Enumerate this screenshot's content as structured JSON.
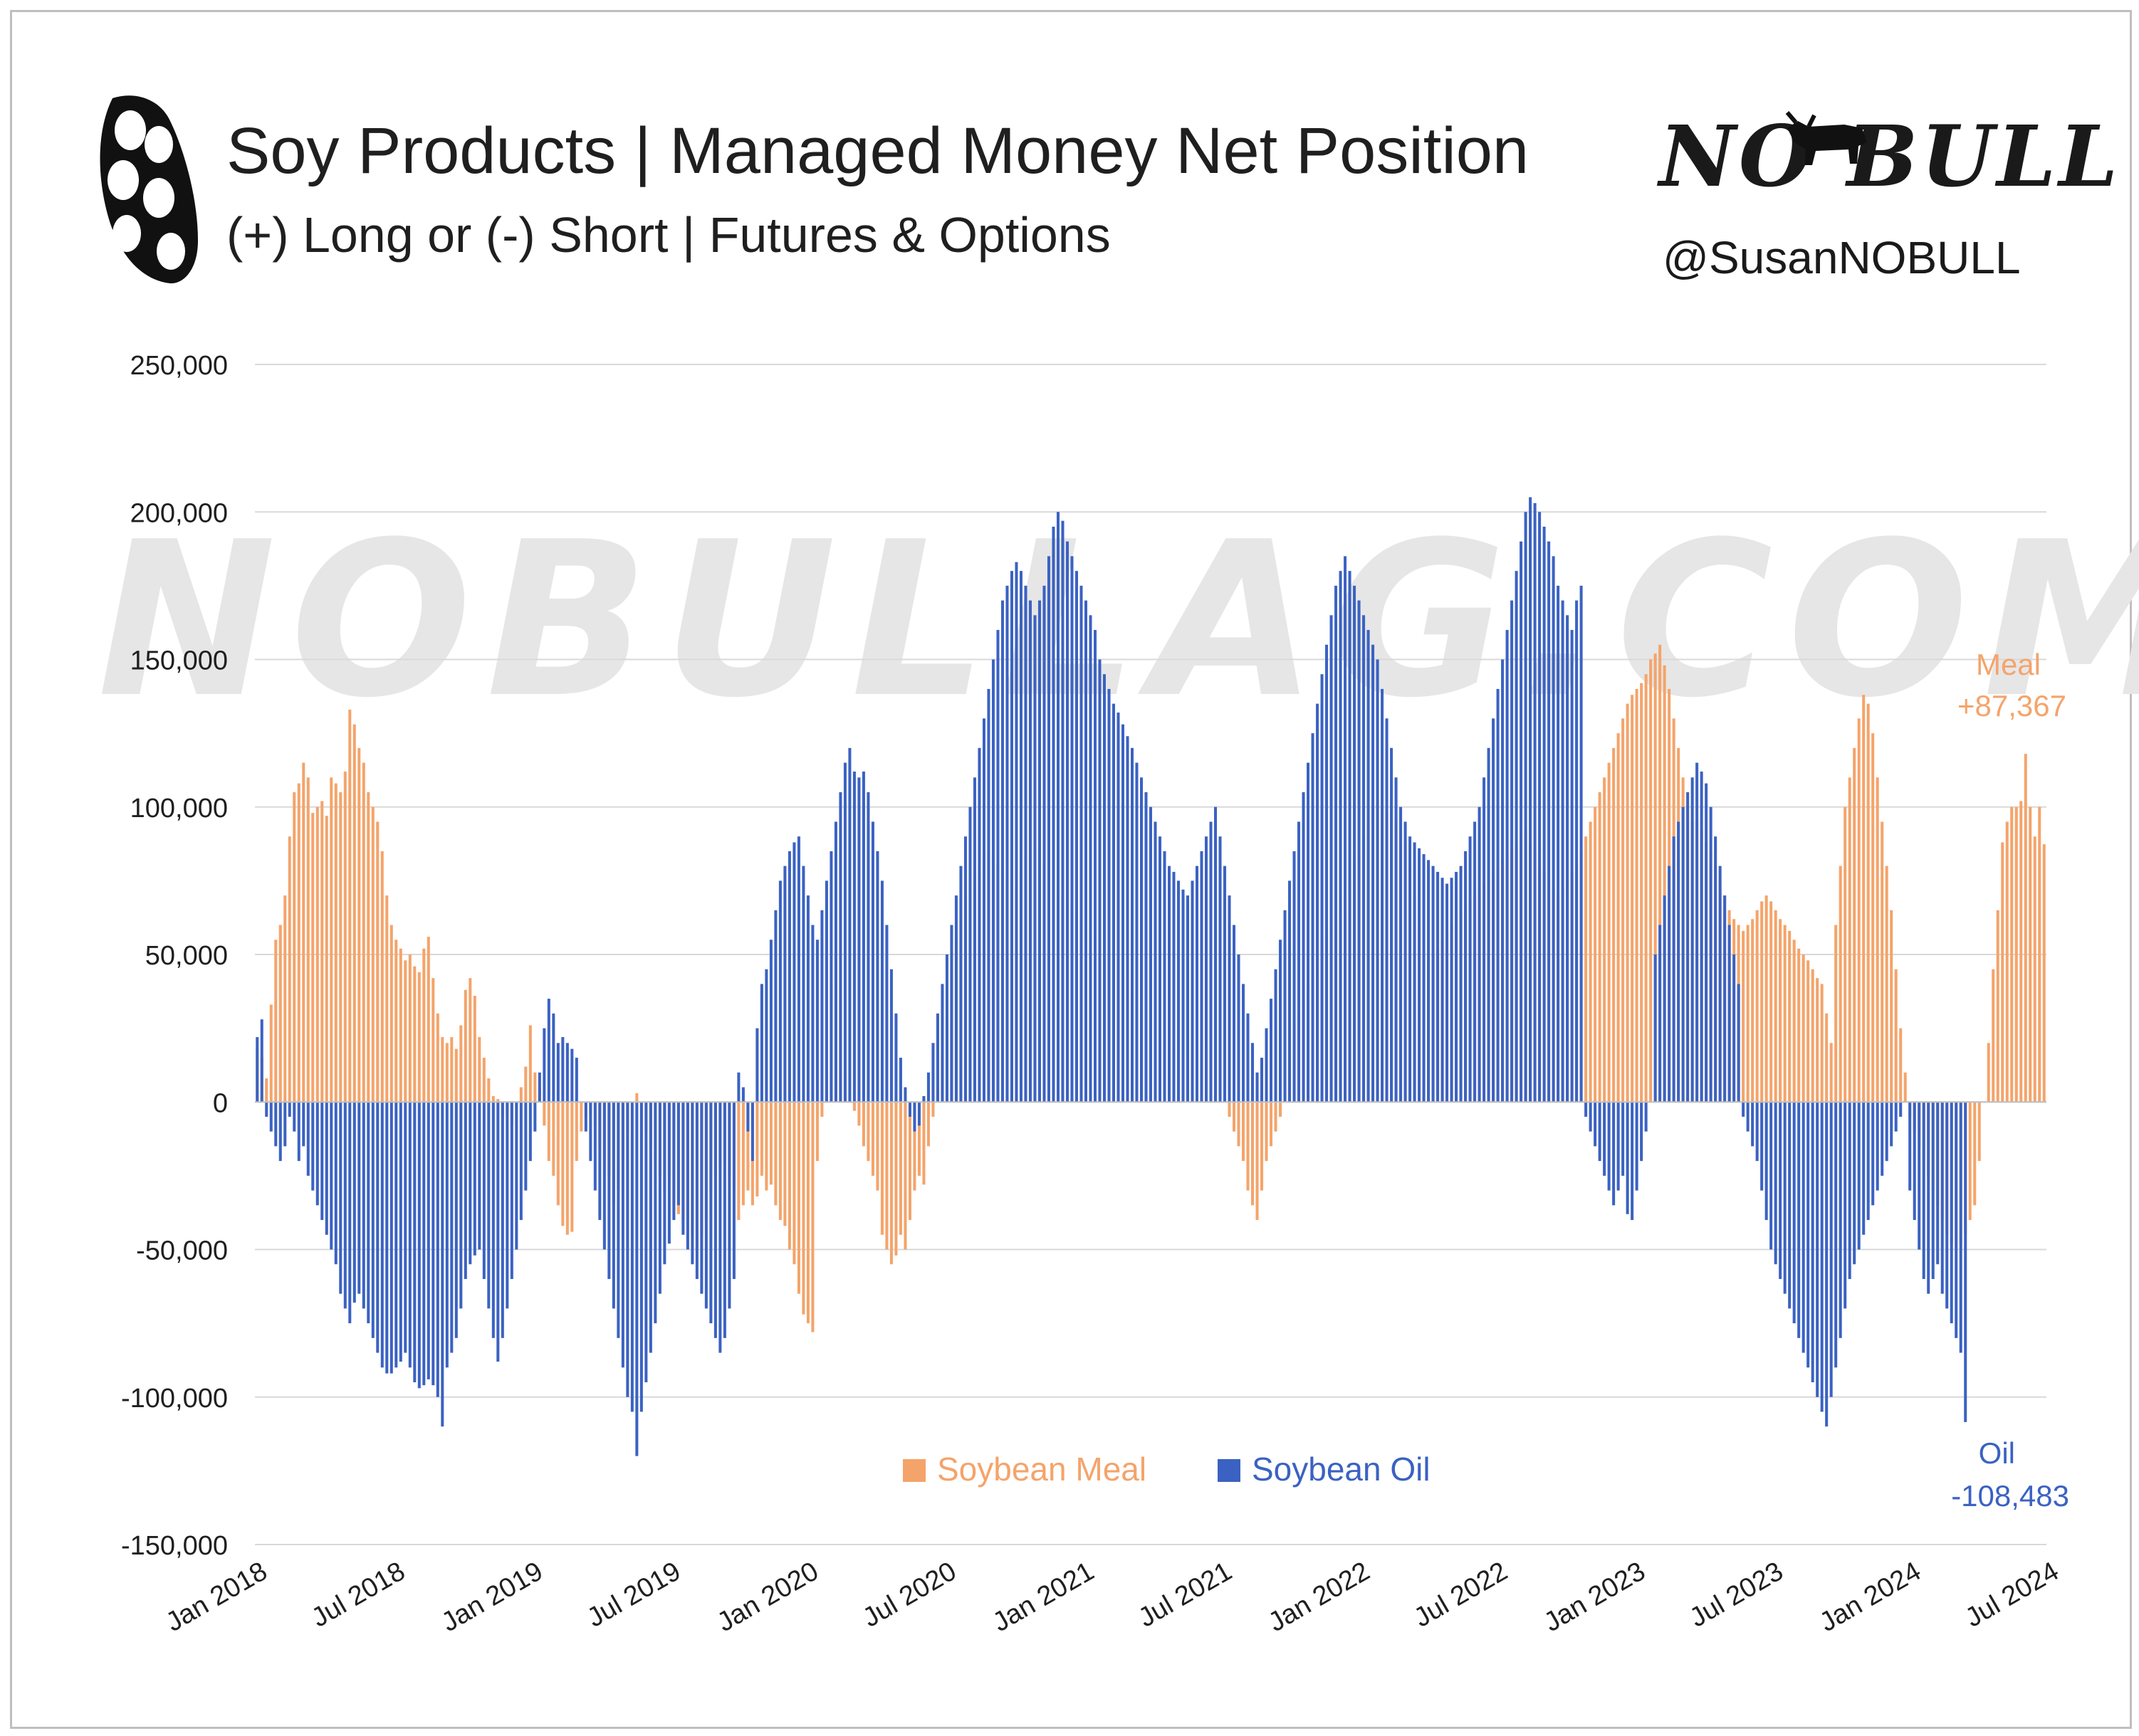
{
  "header": {
    "title": "Soy Products | Managed Money Net Position",
    "subtitle": "(+) Long or (-) Short | Futures & Options",
    "brand": "NO BULL",
    "handle": "@SusanNOBULL",
    "icon": "soybean-pod-icon",
    "brand_icon": "bull-icon"
  },
  "watermark": "NOBULLAG.COM",
  "colors": {
    "meal": "#f4a46b",
    "oil": "#3b62c2",
    "grid": "#d9d9d9",
    "text": "#1f1f1f"
  },
  "annotations": {
    "meal_name": "Meal",
    "meal_value": "+87,367",
    "oil_name": "Oil",
    "oil_value": "-108,483"
  },
  "chart_data": {
    "type": "bar",
    "x_start": "2018-01",
    "x_end": "2024-07",
    "frequency": "weekly",
    "xticks": [
      "Jan 2018",
      "Jul 2018",
      "Jan 2019",
      "Jul 2019",
      "Jan 2020",
      "Jul 2020",
      "Jan 2021",
      "Jul 2021",
      "Jan 2022",
      "Jul 2022",
      "Jan 2023",
      "Jul 2023",
      "Jan 2024",
      "Jul 2024"
    ],
    "yticks": [
      "250,000",
      "200,000",
      "150,000",
      "100,000",
      "50,000",
      "0",
      "-50,000",
      "-100,000",
      "-150,000"
    ],
    "ylim": [
      -150000,
      250000
    ],
    "grid": true,
    "legend_position": "bottom-center",
    "series": [
      {
        "name": "Soybean Meal",
        "color": "#f4a46b",
        "values": [
          18000,
          15000,
          8000,
          33000,
          55000,
          60000,
          70000,
          90000,
          105000,
          108000,
          115000,
          110000,
          98000,
          100000,
          102000,
          97000,
          110000,
          108000,
          105000,
          112000,
          133000,
          128000,
          120000,
          115000,
          105000,
          100000,
          95000,
          85000,
          70000,
          60000,
          55000,
          52000,
          48000,
          50000,
          46000,
          44000,
          52000,
          56000,
          42000,
          30000,
          22000,
          20000,
          22000,
          18000,
          26000,
          38000,
          42000,
          36000,
          22000,
          15000,
          8000,
          2000,
          1000,
          -5000,
          -4000,
          -8000,
          -2000,
          5000,
          12000,
          26000,
          10000,
          5000,
          -8000,
          -20000,
          -25000,
          -35000,
          -42000,
          -45000,
          -44000,
          -20000,
          -10000,
          -5000,
          -4000,
          -8000,
          -15000,
          -20000,
          -25000,
          -35000,
          -30000,
          -20000,
          -10000,
          0,
          3000,
          0,
          -10000,
          -15000,
          -20000,
          -25000,
          -30000,
          -25000,
          -35000,
          -38000,
          -40000,
          -40000,
          -45000,
          -50000,
          -45000,
          -40000,
          -30000,
          -25000,
          -22000,
          -20000,
          -25000,
          -30000,
          -40000,
          -35000,
          -30000,
          -35000,
          -32000,
          -25000,
          -30000,
          -28000,
          -35000,
          -40000,
          -42000,
          -50000,
          -55000,
          -65000,
          -72000,
          -75000,
          -78000,
          -20000,
          -5000,
          10000,
          40000,
          50000,
          35000,
          10000,
          0,
          -3000,
          -8000,
          -15000,
          -20000,
          -25000,
          -30000,
          -45000,
          -50000,
          -55000,
          -52000,
          -45000,
          -50000,
          -40000,
          -30000,
          -25000,
          -28000,
          -15000,
          -5000,
          5000,
          15000,
          28000,
          45000,
          55000,
          62000,
          70000,
          75000,
          78000,
          80000,
          82000,
          85000,
          83000,
          80000,
          78000,
          76000,
          74000,
          72000,
          78000,
          84000,
          87000,
          86000,
          84000,
          82000,
          78000,
          75000,
          72000,
          70000,
          68000,
          66000,
          64000,
          62000,
          60000,
          58000,
          55000,
          50000,
          45000,
          48000,
          50000,
          45000,
          42000,
          40000,
          38000,
          35000,
          32000,
          30000,
          28000,
          25000,
          22000,
          20000,
          18000,
          17000,
          16000,
          16000,
          17000,
          18000,
          19000,
          20000,
          18000,
          16000,
          15000,
          10000,
          0,
          -5000,
          -10000,
          -15000,
          -20000,
          -30000,
          -35000,
          -40000,
          -30000,
          -20000,
          -15000,
          -10000,
          -5000,
          5000,
          15000,
          25000,
          30000,
          35000,
          40000,
          45000,
          50000,
          55000,
          58000,
          60000,
          62000,
          65000,
          70000,
          75000,
          80000,
          85000,
          90000,
          95000,
          100000,
          102000,
          100000,
          98000,
          96000,
          95000,
          92000,
          88000,
          80000,
          70000,
          60000,
          50000,
          48000,
          50000,
          52000,
          55000,
          58000,
          60000,
          62000,
          64000,
          66000,
          68000,
          70000,
          72000,
          74000,
          76000,
          78000,
          80000,
          82000,
          84000,
          86000,
          88000,
          90000,
          92000,
          88000,
          85000,
          80000,
          78000,
          75000,
          72000,
          70000,
          72000,
          75000,
          78000,
          80000,
          85000,
          90000,
          95000,
          100000,
          105000,
          110000,
          115000,
          120000,
          125000,
          130000,
          135000,
          138000,
          140000,
          142000,
          145000,
          150000,
          152000,
          155000,
          148000,
          140000,
          130000,
          120000,
          110000,
          100000,
          95000,
          95000,
          92000,
          88000,
          85000,
          80000,
          75000,
          70000,
          65000,
          62000,
          60000,
          58000,
          60000,
          62000,
          65000,
          68000,
          70000,
          68000,
          65000,
          62000,
          60000,
          58000,
          55000,
          52000,
          50000,
          48000,
          45000,
          42000,
          40000,
          30000,
          20000,
          60000,
          80000,
          100000,
          110000,
          120000,
          130000,
          138000,
          135000,
          125000,
          110000,
          95000,
          80000,
          65000,
          45000,
          25000,
          10000,
          -5000,
          -10000,
          -15000,
          -20000,
          -25000,
          -30000,
          -35000,
          -40000,
          -45000,
          -48000,
          -50000,
          -48000,
          -45000,
          -40000,
          -35000,
          -20000,
          0,
          20000,
          45000,
          65000,
          88000,
          95000,
          100000,
          100000,
          102000,
          118000,
          100000,
          90000,
          100000,
          87367
        ]
      },
      {
        "name": "Soybean Oil",
        "color": "#3b62c2",
        "values": [
          22000,
          28000,
          -5000,
          -10000,
          -15000,
          -20000,
          -15000,
          -5000,
          -10000,
          -20000,
          -15000,
          -25000,
          -30000,
          -35000,
          -40000,
          -45000,
          -50000,
          -55000,
          -65000,
          -70000,
          -75000,
          -68000,
          -65000,
          -70000,
          -75000,
          -80000,
          -85000,
          -90000,
          -92000,
          -92000,
          -90000,
          -88000,
          -85000,
          -90000,
          -95000,
          -97000,
          -96000,
          -94000,
          -96000,
          -100000,
          -110000,
          -90000,
          -85000,
          -80000,
          -70000,
          -60000,
          -55000,
          -52000,
          -50000,
          -60000,
          -70000,
          -80000,
          -88000,
          -80000,
          -70000,
          -60000,
          -50000,
          -40000,
          -30000,
          -20000,
          -10000,
          10000,
          25000,
          35000,
          30000,
          20000,
          22000,
          20000,
          18000,
          15000,
          0,
          -10000,
          -20000,
          -30000,
          -40000,
          -50000,
          -60000,
          -70000,
          -80000,
          -90000,
          -100000,
          -105000,
          -120000,
          -105000,
          -95000,
          -85000,
          -75000,
          -65000,
          -55000,
          -48000,
          -40000,
          -35000,
          -45000,
          -50000,
          -55000,
          -60000,
          -65000,
          -70000,
          -75000,
          -80000,
          -85000,
          -80000,
          -70000,
          -60000,
          10000,
          5000,
          -10000,
          -20000,
          25000,
          40000,
          45000,
          55000,
          65000,
          75000,
          80000,
          85000,
          88000,
          90000,
          80000,
          70000,
          60000,
          55000,
          65000,
          75000,
          85000,
          95000,
          105000,
          115000,
          120000,
          112000,
          110000,
          112000,
          105000,
          95000,
          85000,
          75000,
          60000,
          45000,
          30000,
          15000,
          5000,
          -5000,
          -10000,
          -8000,
          2000,
          10000,
          20000,
          30000,
          40000,
          50000,
          60000,
          70000,
          80000,
          90000,
          100000,
          110000,
          120000,
          130000,
          140000,
          150000,
          160000,
          170000,
          175000,
          180000,
          183000,
          180000,
          175000,
          170000,
          165000,
          170000,
          175000,
          185000,
          195000,
          200000,
          197000,
          190000,
          185000,
          180000,
          175000,
          170000,
          165000,
          160000,
          150000,
          145000,
          140000,
          135000,
          132000,
          128000,
          124000,
          120000,
          115000,
          110000,
          105000,
          100000,
          95000,
          90000,
          85000,
          80000,
          78000,
          75000,
          72000,
          70000,
          75000,
          80000,
          85000,
          90000,
          95000,
          100000,
          90000,
          80000,
          70000,
          60000,
          50000,
          40000,
          30000,
          20000,
          10000,
          15000,
          25000,
          35000,
          45000,
          55000,
          65000,
          75000,
          85000,
          95000,
          105000,
          115000,
          125000,
          135000,
          145000,
          155000,
          165000,
          175000,
          180000,
          185000,
          180000,
          175000,
          170000,
          165000,
          160000,
          155000,
          150000,
          140000,
          130000,
          120000,
          110000,
          100000,
          95000,
          90000,
          88000,
          86000,
          84000,
          82000,
          80000,
          78000,
          76000,
          74000,
          76000,
          78000,
          80000,
          85000,
          90000,
          95000,
          100000,
          110000,
          120000,
          130000,
          140000,
          150000,
          160000,
          170000,
          180000,
          190000,
          200000,
          205000,
          203000,
          200000,
          195000,
          190000,
          185000,
          175000,
          170000,
          165000,
          160000,
          170000,
          175000,
          -5000,
          -10000,
          -15000,
          -20000,
          -25000,
          -30000,
          -35000,
          -30000,
          -25000,
          -38000,
          -40000,
          -30000,
          -20000,
          -10000,
          0,
          50000,
          60000,
          70000,
          80000,
          90000,
          95000,
          100000,
          105000,
          110000,
          115000,
          112000,
          108000,
          100000,
          90000,
          80000,
          70000,
          60000,
          50000,
          40000,
          -5000,
          -10000,
          -15000,
          -20000,
          -30000,
          -40000,
          -50000,
          -55000,
          -60000,
          -65000,
          -70000,
          -75000,
          -80000,
          -85000,
          -90000,
          -95000,
          -100000,
          -105000,
          -110000,
          -100000,
          -90000,
          -80000,
          -70000,
          -60000,
          -55000,
          -50000,
          -45000,
          -40000,
          -35000,
          -30000,
          -25000,
          -20000,
          -15000,
          -10000,
          -5000,
          0,
          -30000,
          -40000,
          -50000,
          -60000,
          -65000,
          -60000,
          -55000,
          -65000,
          -70000,
          -75000,
          -80000,
          -85000,
          -108483
        ]
      }
    ]
  }
}
